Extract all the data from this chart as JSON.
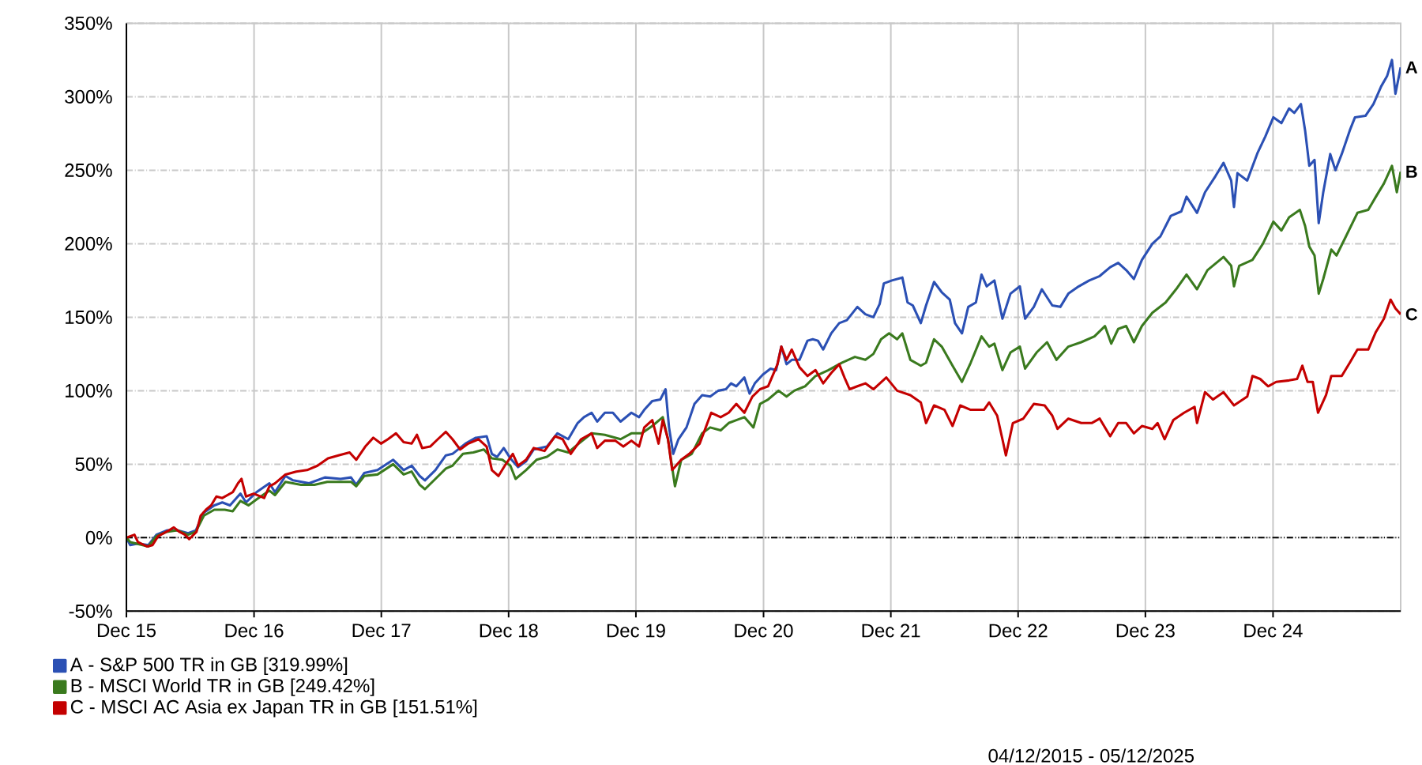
{
  "chart_data": {
    "type": "line",
    "xlim": [
      "2015-12-04",
      "2025-12-05"
    ],
    "xticks": [
      {
        "value": "2015-12-04",
        "label": "Dec 15"
      },
      {
        "value": "2016-12-04",
        "label": "Dec 16"
      },
      {
        "value": "2017-12-04",
        "label": "Dec 17"
      },
      {
        "value": "2018-12-04",
        "label": "Dec 18"
      },
      {
        "value": "2019-12-04",
        "label": "Dec 19"
      },
      {
        "value": "2020-12-04",
        "label": "Dec 20"
      },
      {
        "value": "2021-12-04",
        "label": "Dec 21"
      },
      {
        "value": "2022-12-04",
        "label": "Dec 22"
      },
      {
        "value": "2023-12-04",
        "label": "Dec 23"
      },
      {
        "value": "2024-12-04",
        "label": "Dec 24"
      }
    ],
    "ylim": [
      -50,
      350
    ],
    "yticks": [
      {
        "value": -50,
        "label": "-50%"
      },
      {
        "value": 0,
        "label": "0%"
      },
      {
        "value": 50,
        "label": "50%"
      },
      {
        "value": 100,
        "label": "100%"
      },
      {
        "value": 150,
        "label": "150%"
      },
      {
        "value": 200,
        "label": "200%"
      },
      {
        "value": 250,
        "label": "250%"
      },
      {
        "value": 300,
        "label": "300%"
      },
      {
        "value": 350,
        "label": "350%"
      }
    ],
    "grid": true,
    "legend": "bottom left",
    "ref_lines": [
      {
        "axis": "y",
        "value": 0,
        "color": "#000000",
        "line_style": "dashed"
      }
    ],
    "annotations": [
      {
        "text": "A",
        "x": "2025-12-05",
        "y": 320
      },
      {
        "text": "B",
        "x": "2025-12-05",
        "y": 249
      },
      {
        "text": "C",
        "x": "2025-12-05",
        "y": 152
      },
      "04/12/2015 - 05/12/2025"
    ],
    "series": [
      {
        "name": "A - S&P 500 TR in GB [319.99%]",
        "color": "#2b50b4",
        "x": [
          "2015-12-04",
          "2015-12-15",
          "2016-01-06",
          "2016-02-05",
          "2016-02-28",
          "2016-03-29",
          "2016-04-28",
          "2016-05-29",
          "2016-06-20",
          "2016-07-13",
          "2016-08-12",
          "2016-09-04",
          "2016-09-26",
          "2016-10-26",
          "2016-11-11",
          "2016-12-11",
          "2017-01-17",
          "2017-02-02",
          "2017-03-04",
          "2017-03-26",
          "2017-05-11",
          "2017-06-25",
          "2017-08-09",
          "2017-09-08",
          "2017-09-23",
          "2017-10-16",
          "2017-11-23",
          "2018-01-07",
          "2018-02-06",
          "2018-03-01",
          "2018-03-24",
          "2018-04-08",
          "2018-05-08",
          "2018-06-07",
          "2018-06-26",
          "2018-08-02",
          "2018-09-01",
          "2018-10-02",
          "2018-10-17",
          "2018-11-01",
          "2018-11-20",
          "2018-12-09",
          "2018-12-31",
          "2019-01-23",
          "2019-02-14",
          "2019-03-24",
          "2019-04-23",
          "2019-05-24",
          "2019-06-20",
          "2019-07-08",
          "2019-07-30",
          "2019-08-15",
          "2019-09-06",
          "2019-09-29",
          "2019-10-21",
          "2019-11-21",
          "2019-12-13",
          "2019-12-28",
          "2020-01-20",
          "2020-02-12",
          "2020-02-27",
          "2020-03-08",
          "2020-03-20",
          "2020-04-04",
          "2020-04-27",
          "2020-05-20",
          "2020-06-11",
          "2020-07-04",
          "2020-07-27",
          "2020-08-18",
          "2020-09-02",
          "2020-09-17",
          "2020-10-10",
          "2020-10-25",
          "2020-11-09",
          "2020-12-02",
          "2020-12-24",
          "2021-01-09",
          "2021-01-24",
          "2021-02-08",
          "2021-02-23",
          "2021-03-17",
          "2021-04-09",
          "2021-04-24",
          "2021-05-09",
          "2021-05-24",
          "2021-06-16",
          "2021-07-09",
          "2021-07-31",
          "2021-08-30",
          "2021-09-22",
          "2021-10-15",
          "2021-11-02",
          "2021-11-14",
          "2021-12-07",
          "2022-01-06",
          "2022-01-21",
          "2022-02-05",
          "2022-02-28",
          "2022-03-15",
          "2022-04-07",
          "2022-04-29",
          "2022-05-22",
          "2022-06-06",
          "2022-06-26",
          "2022-07-14",
          "2022-08-05",
          "2022-08-21",
          "2022-09-05",
          "2022-09-27",
          "2022-10-20",
          "2022-11-12",
          "2022-12-09",
          "2022-12-24",
          "2023-01-18",
          "2023-02-10",
          "2023-03-12",
          "2023-04-04",
          "2023-04-27",
          "2023-05-27",
          "2023-06-26",
          "2023-07-26",
          "2023-08-25",
          "2023-09-17",
          "2023-10-10",
          "2023-11-01",
          "2023-11-24",
          "2023-12-24",
          "2024-01-16",
          "2024-02-15",
          "2024-03-16",
          "2024-03-31",
          "2024-04-30",
          "2024-05-23",
          "2024-06-22",
          "2024-07-15",
          "2024-08-06",
          "2024-08-14",
          "2024-08-24",
          "2024-09-21",
          "2024-10-21",
          "2024-11-12",
          "2024-12-05",
          "2024-12-28",
          "2025-01-19",
          "2025-02-03",
          "2025-02-22",
          "2025-03-06",
          "2025-03-18",
          "2025-04-02",
          "2025-04-14",
          "2025-04-27",
          "2025-05-17",
          "2025-06-01",
          "2025-06-19",
          "2025-07-12",
          "2025-07-27",
          "2025-08-26",
          "2025-09-18",
          "2025-10-10",
          "2025-10-27",
          "2025-11-10",
          "2025-11-20",
          "2025-12-05"
        ],
        "values": [
          0,
          -5,
          -4,
          -5,
          2,
          5,
          5,
          3,
          5,
          17,
          22,
          24,
          22,
          30,
          24,
          31,
          37,
          31,
          42,
          39,
          37,
          41,
          40,
          41,
          36,
          44,
          46,
          53,
          46,
          49,
          42,
          39,
          46,
          56,
          57,
          64,
          68,
          69,
          57,
          55,
          61,
          54,
          48,
          52,
          60,
          62,
          71,
          67,
          78,
          82,
          85,
          79,
          85,
          85,
          79,
          85,
          82,
          87,
          93,
          94,
          101,
          75,
          57,
          67,
          75,
          91,
          97,
          96,
          100,
          101,
          105,
          103,
          109,
          98,
          105,
          111,
          115,
          114,
          130,
          118,
          121,
          121,
          134,
          135,
          134,
          128,
          139,
          146,
          148,
          157,
          152,
          150,
          159,
          173,
          175,
          177,
          160,
          158,
          146,
          158,
          174,
          167,
          162,
          146,
          139,
          157,
          160,
          179,
          171,
          175,
          149,
          166,
          171,
          149,
          157,
          169,
          158,
          157,
          166,
          171,
          175,
          178,
          184,
          187,
          182,
          176,
          189,
          200,
          205,
          219,
          222,
          232,
          221,
          235,
          246,
          255,
          243,
          225,
          248,
          243,
          262,
          273,
          286,
          282,
          292,
          289,
          295,
          277,
          253,
          257,
          214,
          235,
          261,
          250,
          261,
          277,
          286,
          287,
          295,
          307,
          314,
          325,
          302,
          320
        ]
      },
      {
        "name": "B - MSCI World TR in GB [249.42%]",
        "color": "#3a7a1e",
        "x": [
          "2015-12-04",
          "2015-12-15",
          "2016-02-05",
          "2016-02-28",
          "2016-03-29",
          "2016-04-28",
          "2016-05-29",
          "2016-06-20",
          "2016-07-13",
          "2016-08-12",
          "2016-09-11",
          "2016-10-04",
          "2016-10-26",
          "2016-11-18",
          "2016-12-11",
          "2017-01-17",
          "2017-02-02",
          "2017-03-04",
          "2017-04-18",
          "2017-05-26",
          "2017-07-02",
          "2017-08-09",
          "2017-09-08",
          "2017-09-23",
          "2017-10-16",
          "2017-11-23",
          "2018-01-07",
          "2018-02-06",
          "2018-03-01",
          "2018-03-24",
          "2018-04-08",
          "2018-05-08",
          "2018-06-07",
          "2018-06-26",
          "2018-07-26",
          "2018-08-25",
          "2018-09-24",
          "2018-10-17",
          "2018-11-16",
          "2018-12-09",
          "2018-12-24",
          "2019-01-23",
          "2019-02-22",
          "2019-03-24",
          "2019-04-23",
          "2019-05-24",
          "2019-06-23",
          "2019-07-30",
          "2019-09-06",
          "2019-10-21",
          "2019-11-21",
          "2019-12-21",
          "2020-01-20",
          "2020-02-19",
          "2020-03-05",
          "2020-03-25",
          "2020-04-12",
          "2020-05-12",
          "2020-06-11",
          "2020-07-04",
          "2020-08-03",
          "2020-08-26",
          "2020-09-17",
          "2020-10-10",
          "2020-11-05",
          "2020-11-24",
          "2020-12-17",
          "2021-01-16",
          "2021-02-08",
          "2021-03-02",
          "2021-04-02",
          "2021-05-02",
          "2021-06-08",
          "2021-07-16",
          "2021-08-23",
          "2021-09-22",
          "2021-10-15",
          "2021-11-06",
          "2021-11-29",
          "2021-12-22",
          "2022-01-06",
          "2022-01-29",
          "2022-02-28",
          "2022-03-15",
          "2022-04-07",
          "2022-04-29",
          "2022-05-30",
          "2022-06-26",
          "2022-07-21",
          "2022-08-21",
          "2022-09-12",
          "2022-09-27",
          "2022-10-20",
          "2022-11-12",
          "2022-12-09",
          "2022-12-24",
          "2023-01-26",
          "2023-02-25",
          "2023-03-24",
          "2023-04-27",
          "2023-06-03",
          "2023-07-11",
          "2023-08-10",
          "2023-08-28",
          "2023-09-17",
          "2023-10-10",
          "2023-11-01",
          "2023-11-24",
          "2023-12-24",
          "2024-01-31",
          "2024-03-01",
          "2024-03-31",
          "2024-04-30",
          "2024-05-30",
          "2024-07-15",
          "2024-08-06",
          "2024-08-14",
          "2024-08-29",
          "2024-10-06",
          "2024-11-05",
          "2024-12-05",
          "2024-12-28",
          "2025-01-19",
          "2025-02-19",
          "2025-03-06",
          "2025-03-18",
          "2025-04-02",
          "2025-04-14",
          "2025-04-27",
          "2025-05-20",
          "2025-06-04",
          "2025-06-27",
          "2025-08-03",
          "2025-09-03",
          "2025-09-25",
          "2025-10-18",
          "2025-11-10",
          "2025-11-24",
          "2025-12-05"
        ],
        "values": [
          0,
          -3,
          -6,
          1,
          4,
          5,
          2,
          4,
          15,
          19,
          19,
          18,
          25,
          22,
          26,
          32,
          29,
          38,
          36,
          36,
          38,
          38,
          38,
          35,
          42,
          43,
          50,
          43,
          45,
          36,
          33,
          40,
          47,
          49,
          57,
          58,
          60,
          54,
          53,
          49,
          40,
          46,
          53,
          55,
          60,
          58,
          64,
          71,
          70,
          67,
          71,
          71,
          76,
          82,
          67,
          35,
          53,
          57,
          71,
          75,
          73,
          78,
          80,
          82,
          75,
          91,
          94,
          100,
          96,
          100,
          103,
          110,
          114,
          119,
          123,
          121,
          125,
          135,
          139,
          135,
          139,
          121,
          117,
          119,
          135,
          130,
          117,
          106,
          119,
          137,
          130,
          132,
          114,
          126,
          130,
          115,
          126,
          133,
          121,
          130,
          133,
          137,
          144,
          132,
          142,
          144,
          133,
          144,
          153,
          160,
          169,
          179,
          169,
          182,
          191,
          185,
          171,
          185,
          189,
          200,
          215,
          209,
          218,
          223,
          212,
          198,
          192,
          166,
          176,
          196,
          192,
          203,
          221,
          223,
          232,
          241,
          253,
          235,
          249
        ]
      },
      {
        "name": "C - MSCI AC Asia ex Japan TR in GB [151.51%]",
        "color": "#c40000",
        "x": [
          "2015-12-04",
          "2015-12-27",
          "2016-01-06",
          "2016-02-02",
          "2016-02-17",
          "2016-03-04",
          "2016-04-04",
          "2016-04-18",
          "2016-05-04",
          "2016-05-20",
          "2016-06-01",
          "2016-06-22",
          "2016-07-04",
          "2016-07-19",
          "2016-08-03",
          "2016-08-18",
          "2016-09-04",
          "2016-10-04",
          "2016-10-19",
          "2016-10-29",
          "2016-11-11",
          "2016-12-03",
          "2017-01-02",
          "2017-01-17",
          "2017-02-02",
          "2017-03-04",
          "2017-04-04",
          "2017-05-05",
          "2017-06-04",
          "2017-07-04",
          "2017-08-03",
          "2017-09-04",
          "2017-09-23",
          "2017-10-19",
          "2017-11-11",
          "2017-12-03",
          "2017-12-23",
          "2018-01-15",
          "2018-02-06",
          "2018-03-01",
          "2018-03-16",
          "2018-03-31",
          "2018-04-23",
          "2018-05-15",
          "2018-06-07",
          "2018-06-26",
          "2018-07-18",
          "2018-08-10",
          "2018-09-09",
          "2018-10-02",
          "2018-10-17",
          "2018-11-05",
          "2018-11-23",
          "2018-12-16",
          "2018-12-31",
          "2019-01-23",
          "2019-02-14",
          "2019-03-17",
          "2019-04-16",
          "2019-05-08",
          "2019-05-31",
          "2019-06-30",
          "2019-07-30",
          "2019-08-15",
          "2019-09-06",
          "2019-10-06",
          "2019-10-29",
          "2019-11-21",
          "2019-12-13",
          "2019-12-28",
          "2020-01-20",
          "2020-02-07",
          "2020-02-19",
          "2020-03-05",
          "2020-03-17",
          "2020-04-12",
          "2020-05-05",
          "2020-06-04",
          "2020-07-07",
          "2020-08-03",
          "2020-08-26",
          "2020-09-17",
          "2020-10-10",
          "2020-11-02",
          "2020-11-24",
          "2020-12-17",
          "2021-01-13",
          "2021-01-24",
          "2021-02-08",
          "2021-02-23",
          "2021-03-17",
          "2021-04-09",
          "2021-05-02",
          "2021-05-24",
          "2021-06-16",
          "2021-07-09",
          "2021-07-24",
          "2021-08-08",
          "2021-08-30",
          "2021-09-22",
          "2021-10-15",
          "2021-11-21",
          "2021-12-22",
          "2022-01-29",
          "2022-02-28",
          "2022-03-15",
          "2022-04-07",
          "2022-05-07",
          "2022-05-30",
          "2022-06-21",
          "2022-07-21",
          "2022-08-28",
          "2022-09-12",
          "2022-10-05",
          "2022-10-20",
          "2022-10-30",
          "2022-11-19",
          "2022-12-19",
          "2023-01-18",
          "2023-02-18",
          "2023-03-12",
          "2023-03-27",
          "2023-04-27",
          "2023-06-03",
          "2023-07-03",
          "2023-07-26",
          "2023-08-25",
          "2023-09-17",
          "2023-10-10",
          "2023-11-01",
          "2023-11-24",
          "2023-12-24",
          "2024-01-08",
          "2024-01-28",
          "2024-02-22",
          "2024-03-24",
          "2024-04-23",
          "2024-04-30",
          "2024-05-23",
          "2024-06-15",
          "2024-07-15",
          "2024-08-14",
          "2024-09-21",
          "2024-10-06",
          "2024-10-28",
          "2024-11-20",
          "2024-12-13",
          "2025-01-19",
          "2025-02-11",
          "2025-02-26",
          "2025-03-13",
          "2025-03-28",
          "2025-04-12",
          "2025-05-05",
          "2025-05-20",
          "2025-06-19",
          "2025-07-12",
          "2025-08-03",
          "2025-09-03",
          "2025-09-25",
          "2025-10-18",
          "2025-11-06",
          "2025-11-20",
          "2025-12-05"
        ],
        "values": [
          0,
          2,
          -3,
          -6,
          -5,
          1,
          5,
          7,
          4,
          2,
          -1,
          4,
          15,
          19,
          22,
          28,
          27,
          31,
          37,
          40,
          28,
          30,
          27,
          35,
          37,
          43,
          45,
          46,
          49,
          54,
          56,
          58,
          53,
          62,
          68,
          64,
          67,
          71,
          65,
          64,
          70,
          61,
          62,
          67,
          72,
          67,
          60,
          64,
          67,
          62,
          46,
          42,
          49,
          57,
          49,
          53,
          61,
          59,
          69,
          67,
          57,
          67,
          71,
          61,
          66,
          66,
          62,
          66,
          62,
          75,
          80,
          64,
          80,
          67,
          46,
          53,
          57,
          64,
          85,
          82,
          85,
          91,
          85,
          96,
          101,
          103,
          118,
          130,
          121,
          128,
          116,
          110,
          114,
          105,
          112,
          118,
          109,
          101,
          103,
          105,
          101,
          109,
          100,
          97,
          92,
          78,
          90,
          87,
          76,
          90,
          87,
          87,
          92,
          83,
          67,
          56,
          78,
          81,
          91,
          90,
          83,
          74,
          81,
          78,
          78,
          81,
          69,
          78,
          78,
          71,
          76,
          74,
          78,
          67,
          80,
          85,
          89,
          78,
          99,
          94,
          99,
          90,
          96,
          110,
          108,
          103,
          106,
          107,
          108,
          117,
          106,
          106,
          85,
          97,
          110,
          110,
          119,
          128,
          128,
          140,
          149,
          162,
          156,
          152
        ]
      }
    ]
  }
}
